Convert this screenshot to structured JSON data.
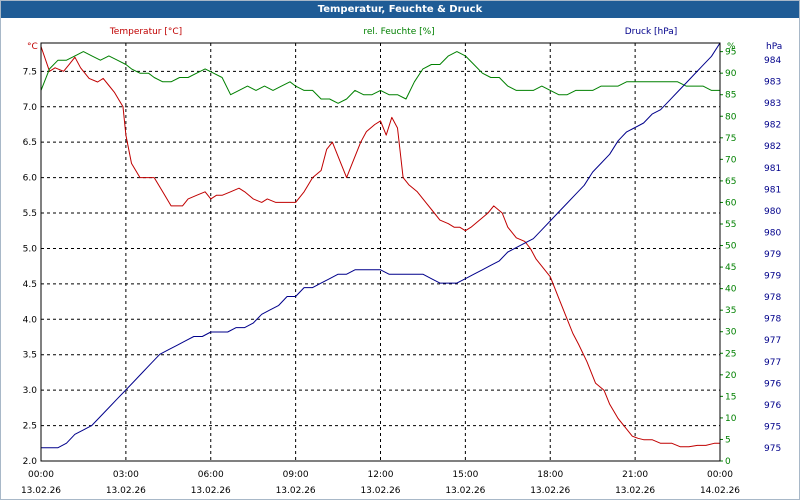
{
  "chart_data": {
    "type": "line",
    "title": "Temperatur, Feuchte & Druck",
    "legend": {
      "temperature": "Temperatur [°C]",
      "humidity": "rel. Feuchte [%]",
      "pressure": "Druck [hPa]"
    },
    "axes": {
      "left": {
        "unit": "°C",
        "min": 2.0,
        "max": 7.9,
        "ticks": [
          "2.0",
          "2.5",
          "3.0",
          "3.5",
          "4.0",
          "4.5",
          "5.0",
          "5.5",
          "6.0",
          "6.5",
          "7.0",
          "7.5"
        ]
      },
      "right_humidity": {
        "unit": "%",
        "min": 0,
        "max": 97,
        "ticks": [
          "0",
          "5",
          "10",
          "15",
          "20",
          "25",
          "30",
          "35",
          "40",
          "45",
          "50",
          "55",
          "60",
          "65",
          "70",
          "75",
          "80",
          "85",
          "90",
          "95"
        ]
      },
      "right_pressure": {
        "unit": "hPa",
        "min": 974.6,
        "max": 984.0,
        "ticks": [
          "975",
          "975",
          "976",
          "976",
          "977",
          "977",
          "978",
          "978",
          "979",
          "979",
          "980",
          "980",
          "981",
          "981",
          "982",
          "982",
          "983",
          "983",
          "984"
        ]
      },
      "x": {
        "min": 0,
        "max": 24,
        "ticks": [
          {
            "time": "00:00",
            "date": "13.02.26"
          },
          {
            "time": "03:00",
            "date": "13.02.26"
          },
          {
            "time": "06:00",
            "date": "13.02.26"
          },
          {
            "time": "09:00",
            "date": "13.02.26"
          },
          {
            "time": "12:00",
            "date": "13.02.26"
          },
          {
            "time": "15:00",
            "date": "13.02.26"
          },
          {
            "time": "18:00",
            "date": "13.02.26"
          },
          {
            "time": "21:00",
            "date": "13.02.26"
          },
          {
            "time": "00:00",
            "date": "14.02.26"
          }
        ]
      }
    },
    "colors": {
      "temperature": "#c00000",
      "humidity": "#008000",
      "pressure": "#00008b",
      "grid": "#000000",
      "title_bg": "#1f5c96"
    },
    "series": [
      {
        "name": "Temperatur",
        "axis": "left",
        "x": [
          0,
          0.3,
          0.5,
          0.8,
          1.0,
          1.2,
          1.4,
          1.7,
          2.0,
          2.2,
          2.4,
          2.6,
          2.9,
          3.0,
          3.2,
          3.5,
          3.8,
          4.0,
          4.3,
          4.6,
          4.8,
          5.0,
          5.2,
          5.5,
          5.8,
          6.0,
          6.2,
          6.4,
          6.7,
          7.0,
          7.2,
          7.5,
          7.8,
          8.0,
          8.3,
          8.6,
          8.9,
          9.0,
          9.3,
          9.6,
          9.9,
          10.1,
          10.3,
          10.6,
          10.8,
          11.0,
          11.3,
          11.5,
          11.8,
          12.0,
          12.2,
          12.4,
          12.6,
          12.8,
          13.0,
          13.3,
          13.6,
          13.9,
          14.1,
          14.4,
          14.6,
          14.8,
          15.0,
          15.2,
          15.5,
          15.8,
          16.0,
          16.3,
          16.5,
          16.8,
          17.1,
          17.3,
          17.5,
          17.8,
          18.0,
          18.3,
          18.6,
          18.8,
          19.0,
          19.3,
          19.6,
          19.9,
          20.1,
          20.4,
          20.7,
          20.9,
          21.1,
          21.3,
          21.6,
          21.9,
          22.1,
          22.3,
          22.6,
          22.9,
          23.2,
          23.5,
          23.8,
          24.0
        ],
        "values": [
          7.85,
          7.5,
          7.55,
          7.5,
          7.6,
          7.7,
          7.55,
          7.4,
          7.35,
          7.4,
          7.3,
          7.2,
          7.0,
          6.6,
          6.2,
          6.0,
          6.0,
          6.0,
          5.8,
          5.6,
          5.6,
          5.6,
          5.7,
          5.75,
          5.8,
          5.7,
          5.75,
          5.75,
          5.8,
          5.85,
          5.8,
          5.7,
          5.65,
          5.7,
          5.65,
          5.65,
          5.65,
          5.65,
          5.8,
          6.0,
          6.1,
          6.4,
          6.5,
          6.2,
          6.0,
          6.2,
          6.5,
          6.65,
          6.75,
          6.8,
          6.6,
          6.85,
          6.7,
          6.0,
          5.9,
          5.8,
          5.65,
          5.5,
          5.4,
          5.35,
          5.3,
          5.3,
          5.25,
          5.3,
          5.4,
          5.5,
          5.6,
          5.5,
          5.3,
          5.15,
          5.1,
          5.0,
          4.85,
          4.7,
          4.6,
          4.3,
          4.0,
          3.8,
          3.65,
          3.4,
          3.1,
          3.0,
          2.8,
          2.6,
          2.45,
          2.35,
          2.32,
          2.3,
          2.3,
          2.25,
          2.25,
          2.25,
          2.2,
          2.2,
          2.22,
          2.22,
          2.25,
          2.25
        ]
      },
      {
        "name": "rel. Feuchte",
        "axis": "right_humidity",
        "x": [
          0,
          0.3,
          0.6,
          0.9,
          1.2,
          1.5,
          1.8,
          2.1,
          2.4,
          2.7,
          3.0,
          3.2,
          3.5,
          3.8,
          4.0,
          4.3,
          4.6,
          4.9,
          5.2,
          5.5,
          5.8,
          6.1,
          6.4,
          6.7,
          7.0,
          7.3,
          7.6,
          7.9,
          8.2,
          8.5,
          8.8,
          9.0,
          9.3,
          9.6,
          9.9,
          10.2,
          10.5,
          10.8,
          11.1,
          11.4,
          11.7,
          12.0,
          12.3,
          12.6,
          12.9,
          13.2,
          13.5,
          13.8,
          14.1,
          14.4,
          14.7,
          15.0,
          15.3,
          15.6,
          15.9,
          16.2,
          16.5,
          16.8,
          17.1,
          17.4,
          17.7,
          18.0,
          18.3,
          18.6,
          18.9,
          19.2,
          19.5,
          19.8,
          20.1,
          20.4,
          20.7,
          21.0,
          21.3,
          21.6,
          21.9,
          22.2,
          22.5,
          22.8,
          23.1,
          23.4,
          23.7,
          24.0
        ],
        "values": [
          86,
          91,
          93,
          93,
          94,
          95,
          94,
          93,
          94,
          93,
          92,
          91,
          90,
          90,
          89,
          88,
          88,
          89,
          89,
          90,
          91,
          90,
          89,
          85,
          86,
          87,
          86,
          87,
          86,
          87,
          88,
          87,
          86,
          86,
          84,
          84,
          83,
          84,
          86,
          85,
          85,
          86,
          85,
          85,
          84,
          88,
          91,
          92,
          92,
          94,
          95,
          94,
          92,
          90,
          89,
          89,
          87,
          86,
          86,
          86,
          87,
          86,
          85,
          85,
          86,
          86,
          86,
          87,
          87,
          87,
          88,
          88,
          88,
          88,
          88,
          88,
          88,
          87,
          87,
          87,
          86,
          86
        ]
      },
      {
        "name": "Druck",
        "axis": "right_pressure",
        "x": [
          0,
          0.3,
          0.6,
          0.9,
          1.2,
          1.5,
          1.8,
          2.1,
          2.4,
          2.7,
          3.0,
          3.3,
          3.6,
          3.9,
          4.2,
          4.5,
          4.8,
          5.1,
          5.4,
          5.7,
          6.0,
          6.3,
          6.6,
          6.9,
          7.2,
          7.5,
          7.8,
          8.1,
          8.4,
          8.7,
          9.0,
          9.3,
          9.6,
          9.9,
          10.2,
          10.5,
          10.8,
          11.1,
          11.4,
          11.7,
          12.0,
          12.3,
          12.6,
          12.9,
          13.2,
          13.5,
          13.8,
          14.1,
          14.4,
          14.7,
          15.0,
          15.3,
          15.6,
          15.9,
          16.2,
          16.5,
          16.8,
          17.1,
          17.4,
          17.7,
          18.0,
          18.3,
          18.6,
          18.9,
          19.2,
          19.5,
          19.8,
          20.1,
          20.4,
          20.7,
          21.0,
          21.3,
          21.6,
          21.9,
          22.2,
          22.5,
          22.8,
          23.1,
          23.4,
          23.7,
          24.0
        ],
        "values": [
          974.9,
          974.9,
          974.9,
          975.0,
          975.2,
          975.3,
          975.4,
          975.6,
          975.8,
          976.0,
          976.2,
          976.4,
          976.6,
          976.8,
          977.0,
          977.1,
          977.2,
          977.3,
          977.4,
          977.4,
          977.5,
          977.5,
          977.5,
          977.6,
          977.6,
          977.7,
          977.9,
          978.0,
          978.1,
          978.3,
          978.3,
          978.5,
          978.5,
          978.6,
          978.7,
          978.8,
          978.8,
          978.9,
          978.9,
          978.9,
          978.9,
          978.8,
          978.8,
          978.8,
          978.8,
          978.8,
          978.7,
          978.6,
          978.6,
          978.6,
          978.7,
          978.8,
          978.9,
          979.0,
          979.1,
          979.3,
          979.4,
          979.5,
          979.6,
          979.8,
          980.0,
          980.2,
          980.4,
          980.6,
          980.8,
          981.1,
          981.3,
          981.5,
          981.8,
          982.0,
          982.1,
          982.2,
          982.4,
          982.5,
          982.7,
          982.9,
          983.1,
          983.3,
          983.5,
          983.7,
          984.0
        ]
      }
    ]
  }
}
